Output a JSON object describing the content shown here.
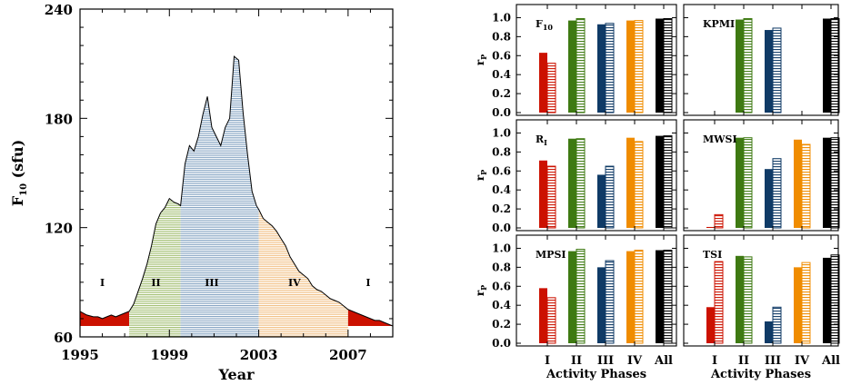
{
  "colors": {
    "phase_I": "#cc1100",
    "phase_II": "#3e7a12",
    "phase_III": "#0f3a66",
    "phase_IV": "#f08c00",
    "all": "#000000",
    "fill_I": "#cc1100",
    "fill_II": "#9dbb6a",
    "fill_III": "#7f9fbf",
    "fill_IV": "#f1bd80"
  },
  "chart_data": [
    {
      "type": "area",
      "xlabel": "Year",
      "ylabel": "F",
      "ylabel_sub": "10",
      "ylabel_unit": " (sfu)",
      "xlim": [
        1995.0,
        2009.0
      ],
      "ylim": [
        60,
        240
      ],
      "xticks": [
        1995,
        1999,
        2003,
        2007
      ],
      "yticks": [
        60,
        120,
        180,
        240
      ],
      "phases": [
        {
          "label": "I",
          "start": 1995.0,
          "end": 1997.2,
          "label_x": 1996.0,
          "color": "fill_I"
        },
        {
          "label": "II",
          "start": 1997.2,
          "end": 1999.5,
          "label_x": 1998.4,
          "color": "fill_II"
        },
        {
          "label": "III",
          "start": 1999.5,
          "end": 2003.0,
          "label_x": 2000.9,
          "color": "fill_III"
        },
        {
          "label": "IV",
          "start": 2003.0,
          "end": 2007.0,
          "label_x": 2004.6,
          "color": "fill_IV"
        },
        {
          "label": "I",
          "start": 2007.0,
          "end": 2009.0,
          "label_x": 2007.9,
          "color": "fill_I"
        }
      ],
      "phase_label_y": 90,
      "series": [
        {
          "x": [
            1995.0,
            1995.3,
            1995.6,
            1995.8,
            1996.0,
            1996.2,
            1996.4,
            1996.6,
            1996.8,
            1997.0,
            1997.2,
            1997.4,
            1997.6,
            1997.8,
            1998.0,
            1998.2,
            1998.4,
            1998.6,
            1998.8,
            1999.0,
            1999.2,
            1999.4,
            1999.5,
            1999.7,
            1999.9,
            2000.1,
            2000.3,
            2000.5,
            2000.7,
            2000.9,
            2001.1,
            2001.3,
            2001.5,
            2001.7,
            2001.8,
            2001.9,
            2002.1,
            2002.3,
            2002.5,
            2002.7,
            2002.9,
            2003.0,
            2003.2,
            2003.4,
            2003.6,
            2003.8,
            2004.0,
            2004.2,
            2004.4,
            2004.6,
            2004.8,
            2005.0,
            2005.2,
            2005.4,
            2005.6,
            2005.8,
            2006.0,
            2006.2,
            2006.4,
            2006.6,
            2006.8,
            2007.0,
            2007.2,
            2007.4,
            2007.6,
            2007.8,
            2008.0,
            2008.2,
            2008.4,
            2008.6,
            2008.8,
            2009.0
          ],
          "y": [
            74,
            72,
            71,
            71,
            70,
            71,
            72,
            71,
            72,
            73,
            74,
            78,
            85,
            92,
            100,
            110,
            122,
            128,
            131,
            136,
            134,
            133,
            132,
            155,
            165,
            162,
            170,
            182,
            192,
            175,
            170,
            165,
            175,
            180,
            197,
            214,
            212,
            183,
            160,
            140,
            132,
            130,
            125,
            123,
            121,
            118,
            114,
            110,
            104,
            100,
            96,
            94,
            92,
            88,
            86,
            85,
            83,
            81,
            80,
            79,
            77,
            75,
            74,
            73,
            72,
            71,
            70,
            69,
            69,
            68,
            67,
            66
          ]
        }
      ]
    },
    {
      "type": "bar",
      "categories": [
        "I",
        "II",
        "III",
        "IV",
        "All"
      ],
      "ylabel": "r",
      "ylabel_sub": "P",
      "xlabel": "Activity Phases",
      "ylim": [
        0,
        1.1
      ],
      "yticks": [
        "0.0",
        "0.2",
        "0.4",
        "0.6",
        "0.8",
        "1.0"
      ],
      "panels": [
        {
          "label": "F",
          "label_sub": "10",
          "solid": [
            0.63,
            0.97,
            0.93,
            0.97,
            0.99
          ],
          "hatched": [
            0.52,
            0.99,
            0.94,
            0.97,
            0.99
          ]
        },
        {
          "label": "KPMI",
          "label_sub": "",
          "solid": [
            null,
            0.98,
            0.87,
            null,
            0.99
          ],
          "hatched": [
            null,
            0.99,
            0.89,
            null,
            0.99
          ]
        },
        {
          "label": "R",
          "label_sub": "I",
          "solid": [
            0.71,
            0.94,
            0.56,
            0.95,
            0.97
          ],
          "hatched": [
            0.65,
            0.94,
            0.65,
            0.91,
            0.97
          ]
        },
        {
          "label": "MWSI",
          "label_sub": "",
          "solid": [
            0.01,
            0.95,
            0.62,
            0.93,
            0.95
          ],
          "hatched": [
            0.14,
            0.95,
            0.73,
            0.88,
            0.95
          ]
        },
        {
          "label": "MPSI",
          "label_sub": "",
          "solid": [
            0.58,
            0.97,
            0.8,
            0.97,
            0.98
          ],
          "hatched": [
            0.48,
            0.99,
            0.87,
            0.98,
            0.98
          ]
        },
        {
          "label": "TSI",
          "label_sub": "",
          "solid": [
            0.38,
            0.92,
            0.23,
            0.8,
            0.9
          ],
          "hatched": [
            0.86,
            0.91,
            0.38,
            0.85,
            0.93
          ]
        }
      ]
    }
  ]
}
